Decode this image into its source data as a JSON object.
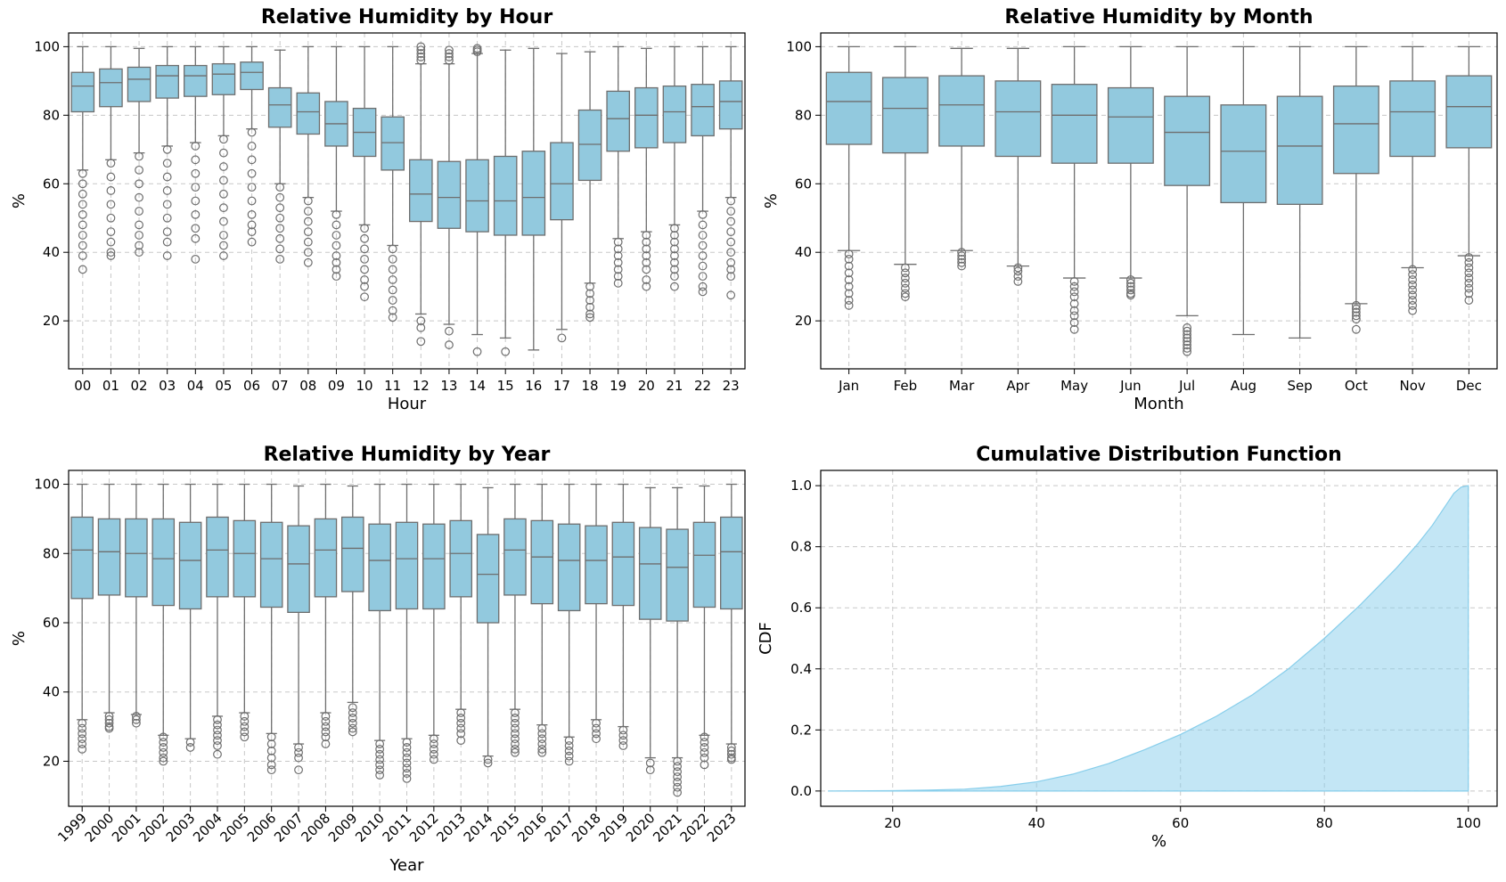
{
  "colors": {
    "box_fill": "#92c9de",
    "box_edge": "#6e6e6e",
    "cdf_fill": "#87ceeb"
  },
  "chart_data": [
    {
      "type": "box",
      "title": "Relative Humidity by Hour",
      "xlabel": "Hour",
      "ylabel": "%",
      "ylim": [
        6,
        104
      ],
      "yticks": [
        20,
        40,
        60,
        80,
        100
      ],
      "grid": true,
      "categories": [
        "00",
        "01",
        "02",
        "03",
        "04",
        "05",
        "06",
        "07",
        "08",
        "09",
        "10",
        "11",
        "12",
        "13",
        "14",
        "15",
        "16",
        "17",
        "18",
        "19",
        "20",
        "21",
        "22",
        "23"
      ],
      "boxes": [
        {
          "q1": 81,
          "median": 88.5,
          "q3": 92.5,
          "whislo": 64,
          "whishi": 100,
          "fliers": [
            63,
            60,
            57,
            54,
            51,
            48,
            45,
            42,
            39,
            35
          ]
        },
        {
          "q1": 82.5,
          "median": 89.5,
          "q3": 93.5,
          "whislo": 67,
          "whishi": 100,
          "fliers": [
            66,
            62,
            58,
            54,
            50,
            46,
            43,
            40,
            39
          ]
        },
        {
          "q1": 84,
          "median": 90.5,
          "q3": 94,
          "whislo": 69,
          "whishi": 99.5,
          "fliers": [
            68,
            64,
            60,
            56,
            52,
            48,
            45,
            42,
            40
          ]
        },
        {
          "q1": 85,
          "median": 91.5,
          "q3": 94.5,
          "whislo": 71,
          "whishi": 100,
          "fliers": [
            70,
            66,
            62,
            58,
            54,
            50,
            46,
            43,
            39
          ]
        },
        {
          "q1": 85.5,
          "median": 91.5,
          "q3": 94.5,
          "whislo": 72,
          "whishi": 100,
          "fliers": [
            71,
            67,
            63,
            59,
            55,
            51,
            47,
            44,
            38
          ]
        },
        {
          "q1": 86,
          "median": 92,
          "q3": 95,
          "whislo": 74,
          "whishi": 100,
          "fliers": [
            73,
            69,
            65,
            61,
            57,
            53,
            49,
            45,
            42,
            39
          ]
        },
        {
          "q1": 87.5,
          "median": 92.5,
          "q3": 95.5,
          "whislo": 76,
          "whishi": 100,
          "fliers": [
            75,
            71,
            67,
            63,
            59,
            55,
            51,
            48,
            46,
            43
          ]
        },
        {
          "q1": 76.5,
          "median": 83,
          "q3": 88,
          "whislo": 60,
          "whishi": 99,
          "fliers": [
            59,
            56,
            53,
            50,
            47,
            44,
            41,
            38
          ]
        },
        {
          "q1": 74.5,
          "median": 81,
          "q3": 86.5,
          "whislo": 56,
          "whishi": 100,
          "fliers": [
            55,
            52,
            49,
            46,
            43,
            40,
            37
          ]
        },
        {
          "q1": 71,
          "median": 77.5,
          "q3": 84,
          "whislo": 52,
          "whishi": 100,
          "fliers": [
            51,
            48,
            45,
            42,
            39,
            37,
            35,
            33
          ]
        },
        {
          "q1": 68,
          "median": 75,
          "q3": 82,
          "whislo": 48,
          "whishi": 100,
          "fliers": [
            47,
            44,
            41,
            38,
            35,
            32,
            30,
            27
          ]
        },
        {
          "q1": 64,
          "median": 72,
          "q3": 79.5,
          "whislo": 42,
          "whishi": 100,
          "fliers": [
            41,
            38,
            35,
            32,
            29,
            26,
            23,
            21
          ]
        },
        {
          "q1": 49,
          "median": 57,
          "q3": 67,
          "whislo": 22,
          "whishi": 95,
          "fliers": [
            96,
            97,
            98,
            99,
            100,
            20,
            18,
            14
          ]
        },
        {
          "q1": 47,
          "median": 56,
          "q3": 66.5,
          "whislo": 19,
          "whishi": 95,
          "fliers": [
            96,
            97,
            98,
            99,
            17,
            13
          ]
        },
        {
          "q1": 46,
          "median": 55,
          "q3": 67,
          "whislo": 16,
          "whishi": 98,
          "fliers": [
            98.5,
            99,
            99.5,
            11
          ]
        },
        {
          "q1": 45,
          "median": 55,
          "q3": 68,
          "whislo": 15,
          "whishi": 99,
          "fliers": [
            11
          ]
        },
        {
          "q1": 45,
          "median": 56,
          "q3": 69.5,
          "whislo": 11.5,
          "whishi": 99.5,
          "fliers": []
        },
        {
          "q1": 49.5,
          "median": 60,
          "q3": 72,
          "whislo": 17.5,
          "whishi": 98,
          "fliers": [
            15
          ]
        },
        {
          "q1": 61,
          "median": 71.5,
          "q3": 81.5,
          "whislo": 31,
          "whishi": 98.5,
          "fliers": [
            30,
            28,
            26,
            24,
            22,
            21
          ]
        },
        {
          "q1": 69.5,
          "median": 79,
          "q3": 87,
          "whislo": 44,
          "whishi": 100,
          "fliers": [
            43,
            41,
            39,
            37,
            35,
            33,
            31
          ]
        },
        {
          "q1": 70.5,
          "median": 80,
          "q3": 88,
          "whislo": 46,
          "whishi": 99.5,
          "fliers": [
            45,
            43,
            41,
            39,
            37,
            35,
            32,
            30
          ]
        },
        {
          "q1": 72,
          "median": 81,
          "q3": 88.5,
          "whislo": 48,
          "whishi": 100,
          "fliers": [
            47,
            45,
            43,
            41,
            39,
            37,
            35,
            33,
            30
          ]
        },
        {
          "q1": 74,
          "median": 82.5,
          "q3": 89,
          "whislo": 52,
          "whishi": 100,
          "fliers": [
            51,
            48,
            45,
            42,
            39,
            36,
            33,
            30,
            28.5
          ]
        },
        {
          "q1": 76,
          "median": 84,
          "q3": 90,
          "whislo": 56,
          "whishi": 100,
          "fliers": [
            55,
            52,
            49,
            46,
            43,
            40,
            37,
            35,
            33,
            27.5
          ]
        }
      ]
    },
    {
      "type": "box",
      "title": "Relative Humidity by Month",
      "xlabel": "Month",
      "ylabel": "%",
      "ylim": [
        6,
        104
      ],
      "yticks": [
        20,
        40,
        60,
        80,
        100
      ],
      "grid": true,
      "categories": [
        "Jan",
        "Feb",
        "Mar",
        "Apr",
        "May",
        "Jun",
        "Jul",
        "Aug",
        "Sep",
        "Oct",
        "Nov",
        "Dec"
      ],
      "boxes": [
        {
          "q1": 71.5,
          "median": 84,
          "q3": 92.5,
          "whislo": 40.5,
          "whishi": 100,
          "fliers": [
            39.5,
            38,
            36,
            34,
            32,
            30,
            28,
            26,
            24.5
          ]
        },
        {
          "q1": 69,
          "median": 82,
          "q3": 91,
          "whislo": 36.5,
          "whishi": 100,
          "fliers": [
            35.5,
            34,
            32.5,
            31,
            29.5,
            28,
            27
          ]
        },
        {
          "q1": 71,
          "median": 83,
          "q3": 91.5,
          "whislo": 40.5,
          "whishi": 99.5,
          "fliers": [
            40,
            39,
            38,
            37,
            36
          ]
        },
        {
          "q1": 68,
          "median": 81,
          "q3": 90,
          "whislo": 36,
          "whishi": 99.5,
          "fliers": [
            35.5,
            34.5,
            33,
            31.5
          ]
        },
        {
          "q1": 66,
          "median": 80,
          "q3": 89,
          "whislo": 32.5,
          "whishi": 100,
          "fliers": [
            31.5,
            30,
            28.5,
            27,
            25,
            23,
            21.5,
            19.5,
            17.5
          ]
        },
        {
          "q1": 66,
          "median": 79.5,
          "q3": 88,
          "whislo": 32.5,
          "whishi": 100,
          "fliers": [
            32,
            31,
            30,
            29,
            28,
            27.5
          ]
        },
        {
          "q1": 59.5,
          "median": 75,
          "q3": 85.5,
          "whislo": 21.5,
          "whishi": 100,
          "fliers": [
            18,
            17,
            16,
            15,
            14,
            13,
            12,
            11
          ]
        },
        {
          "q1": 54.5,
          "median": 69.5,
          "q3": 83,
          "whislo": 16,
          "whishi": 100,
          "fliers": []
        },
        {
          "q1": 54,
          "median": 71,
          "q3": 85.5,
          "whislo": 15,
          "whishi": 100,
          "fliers": []
        },
        {
          "q1": 63,
          "median": 77.5,
          "q3": 88.5,
          "whislo": 25,
          "whishi": 100,
          "fliers": [
            24.5,
            23.5,
            22.5,
            21.5,
            20.5,
            17.5
          ]
        },
        {
          "q1": 68,
          "median": 81,
          "q3": 90,
          "whislo": 35.5,
          "whishi": 100,
          "fliers": [
            35,
            33.5,
            32,
            30.5,
            29,
            27.5,
            26,
            24.5,
            23
          ]
        },
        {
          "q1": 70.5,
          "median": 82.5,
          "q3": 91.5,
          "whislo": 39,
          "whishi": 100,
          "fliers": [
            38.5,
            37,
            35.5,
            34,
            32.5,
            31,
            29.5,
            28,
            26
          ]
        }
      ]
    },
    {
      "type": "box",
      "title": "Relative Humidity by Year",
      "xlabel": "Year",
      "ylabel": "%",
      "ylim": [
        7,
        104
      ],
      "yticks": [
        20,
        40,
        60,
        80,
        100
      ],
      "grid": true,
      "categories": [
        "1999",
        "2000",
        "2001",
        "2002",
        "2003",
        "2004",
        "2005",
        "2006",
        "2007",
        "2008",
        "2009",
        "2010",
        "2011",
        "2012",
        "2013",
        "2014",
        "2015",
        "2016",
        "2017",
        "2018",
        "2019",
        "2020",
        "2021",
        "2022",
        "2023"
      ],
      "boxes": [
        {
          "q1": 67,
          "median": 81,
          "q3": 90.5,
          "whislo": 32,
          "whishi": 100,
          "fliers": [
            31,
            29.5,
            28,
            26.5,
            25,
            23.5
          ]
        },
        {
          "q1": 68,
          "median": 80.5,
          "q3": 90,
          "whislo": 34,
          "whishi": 100,
          "fliers": [
            33,
            32,
            31,
            30,
            29.5
          ]
        },
        {
          "q1": 67.5,
          "median": 80,
          "q3": 90,
          "whislo": 33.5,
          "whishi": 100,
          "fliers": [
            33,
            32,
            31
          ]
        },
        {
          "q1": 65,
          "median": 78.5,
          "q3": 90,
          "whislo": 27.5,
          "whishi": 100,
          "fliers": [
            27,
            25.5,
            24,
            22.5,
            21,
            20
          ]
        },
        {
          "q1": 64,
          "median": 78,
          "q3": 89,
          "whislo": 26.5,
          "whishi": 100,
          "fliers": [
            25.5,
            24
          ]
        },
        {
          "q1": 67.5,
          "median": 81,
          "q3": 90.5,
          "whislo": 33,
          "whishi": 100,
          "fliers": [
            32,
            30.5,
            29,
            27.5,
            26,
            24.5,
            22
          ]
        },
        {
          "q1": 67.5,
          "median": 80,
          "q3": 89.5,
          "whislo": 34,
          "whishi": 100,
          "fliers": [
            33,
            31.5,
            30,
            28.5,
            27
          ]
        },
        {
          "q1": 64.5,
          "median": 78.5,
          "q3": 89,
          "whislo": 28,
          "whishi": 100,
          "fliers": [
            27,
            25,
            23,
            21,
            19,
            17.5
          ]
        },
        {
          "q1": 63,
          "median": 77,
          "q3": 88,
          "whislo": 25,
          "whishi": 99.5,
          "fliers": [
            24,
            22.5,
            21,
            17.5
          ]
        },
        {
          "q1": 67.5,
          "median": 81,
          "q3": 90,
          "whislo": 34,
          "whishi": 100,
          "fliers": [
            33,
            31.5,
            30,
            28.5,
            27,
            25
          ]
        },
        {
          "q1": 69,
          "median": 81.5,
          "q3": 90.5,
          "whislo": 37,
          "whishi": 99.5,
          "fliers": [
            35.5,
            34,
            32.5,
            31,
            29.5,
            28.5
          ]
        },
        {
          "q1": 63.5,
          "median": 78,
          "q3": 88.5,
          "whislo": 26,
          "whishi": 100,
          "fliers": [
            25,
            23.5,
            22,
            20.5,
            19,
            17.5,
            16
          ]
        },
        {
          "q1": 64,
          "median": 78.5,
          "q3": 89,
          "whislo": 26.5,
          "whishi": 100,
          "fliers": [
            25.5,
            24,
            22.5,
            21,
            19.5,
            18,
            16.5,
            15
          ]
        },
        {
          "q1": 64,
          "median": 78.5,
          "q3": 88.5,
          "whislo": 27.5,
          "whishi": 100,
          "fliers": [
            26.5,
            25,
            23.5,
            22,
            20.5
          ]
        },
        {
          "q1": 67.5,
          "median": 80,
          "q3": 89.5,
          "whislo": 35,
          "whishi": 100,
          "fliers": [
            34,
            32.5,
            31,
            29.5,
            28,
            26
          ]
        },
        {
          "q1": 60,
          "median": 74,
          "q3": 85.5,
          "whislo": 21.5,
          "whishi": 99,
          "fliers": [
            20.5,
            19.5
          ]
        },
        {
          "q1": 68,
          "median": 81,
          "q3": 90,
          "whislo": 35,
          "whishi": 100,
          "fliers": [
            34,
            32.5,
            31,
            29.5,
            28,
            26.5,
            25,
            23.5,
            22.5
          ]
        },
        {
          "q1": 65.5,
          "median": 79,
          "q3": 89.5,
          "whislo": 30.5,
          "whishi": 100,
          "fliers": [
            29.5,
            28,
            26.5,
            25,
            23.5,
            22.5
          ]
        },
        {
          "q1": 63.5,
          "median": 78,
          "q3": 88.5,
          "whislo": 27,
          "whishi": 100,
          "fliers": [
            26,
            24.5,
            23,
            21.5,
            20
          ]
        },
        {
          "q1": 65.5,
          "median": 78,
          "q3": 88,
          "whislo": 32,
          "whishi": 100,
          "fliers": [
            31,
            29.5,
            28,
            26.5
          ]
        },
        {
          "q1": 65,
          "median": 79,
          "q3": 89,
          "whislo": 30,
          "whishi": 100,
          "fliers": [
            29,
            27.5,
            26,
            24.5
          ]
        },
        {
          "q1": 61,
          "median": 77,
          "q3": 87.5,
          "whislo": 21,
          "whishi": 99,
          "fliers": [
            19.5,
            17.5
          ]
        },
        {
          "q1": 60.5,
          "median": 76,
          "q3": 87,
          "whislo": 21,
          "whishi": 99,
          "fliers": [
            20,
            18.5,
            17,
            15.5,
            14,
            12.5,
            11
          ]
        },
        {
          "q1": 64.5,
          "median": 79.5,
          "q3": 89,
          "whislo": 27.5,
          "whishi": 99.5,
          "fliers": [
            27,
            25.5,
            24,
            22.5,
            21,
            19
          ]
        },
        {
          "q1": 64,
          "median": 80.5,
          "q3": 90.5,
          "whislo": 25,
          "whishi": 100,
          "fliers": [
            24,
            23,
            22,
            21,
            20.5
          ]
        }
      ]
    },
    {
      "type": "area",
      "title": "Cumulative Distribution Function",
      "xlabel": "%",
      "ylabel": "CDF",
      "xlim": [
        10,
        104
      ],
      "ylim": [
        -0.05,
        1.05
      ],
      "xticks": [
        20,
        40,
        60,
        80,
        100
      ],
      "yticks": [
        0.0,
        0.2,
        0.4,
        0.6,
        0.8,
        1.0
      ],
      "grid": true,
      "x": [
        11,
        20,
        25,
        30,
        35,
        40,
        45,
        50,
        55,
        60,
        65,
        70,
        75,
        80,
        85,
        90,
        93,
        95,
        97,
        98,
        99,
        100
      ],
      "y": [
        0.0,
        0.001,
        0.003,
        0.006,
        0.015,
        0.03,
        0.055,
        0.09,
        0.135,
        0.185,
        0.245,
        0.315,
        0.4,
        0.5,
        0.61,
        0.73,
        0.81,
        0.87,
        0.94,
        0.975,
        0.995,
        1.0
      ]
    }
  ]
}
